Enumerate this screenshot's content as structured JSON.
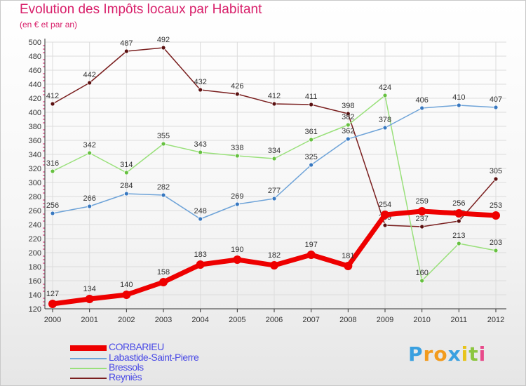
{
  "title": "Evolution des Impôts locaux par Habitant",
  "subtitle": "(en € et par an)",
  "logo": {
    "letters": [
      "P",
      "r",
      "o",
      "x",
      "i",
      "t",
      "i"
    ],
    "colors": [
      "#3aa0e0",
      "#f29b1d",
      "#f29b1d",
      "#3aa0e0",
      "#e8c41a",
      "#8cc63f",
      "#e84a8a"
    ]
  },
  "chart_data": {
    "type": "line",
    "x": [
      "2000",
      "2001",
      "2002",
      "2003",
      "2004",
      "2005",
      "2006",
      "2007",
      "2008",
      "2009",
      "2010",
      "2011",
      "2012"
    ],
    "ylim": [
      120,
      500
    ],
    "yticks": [
      "120",
      "140",
      "160",
      "180",
      "200",
      "220",
      "240",
      "260",
      "280",
      "300",
      "320",
      "340",
      "360",
      "380",
      "400",
      "420",
      "440",
      "460",
      "480",
      "500"
    ],
    "grid": true,
    "series": [
      {
        "name": "Reyniès",
        "color": "#7a1f1f",
        "point_color": "#5a1010",
        "values": [
          412,
          442,
          487,
          492,
          432,
          426,
          412,
          411,
          398,
          239,
          237,
          245,
          305
        ],
        "labels": [
          "412",
          "442",
          "487",
          "492",
          "432",
          "426",
          "412",
          "411",
          "398",
          "239",
          "237",
          "245",
          "305"
        ]
      },
      {
        "name": "Bressols",
        "color": "#99e07a",
        "point_color": "#66c040",
        "values": [
          316,
          342,
          314,
          355,
          343,
          338,
          334,
          361,
          382,
          424,
          160,
          213,
          203
        ],
        "labels": [
          "316",
          "342",
          "314",
          "355",
          "343",
          "338",
          "334",
          "361",
          "382",
          "424",
          "160",
          "213",
          "203"
        ]
      },
      {
        "name": "Labastide-Saint-Pierre",
        "color": "#6ea3d8",
        "point_color": "#3878c0",
        "values": [
          256,
          266,
          284,
          282,
          248,
          269,
          277,
          325,
          362,
          378,
          406,
          410,
          407
        ],
        "labels": [
          "256",
          "266",
          "284",
          "282",
          "248",
          "269",
          "277",
          "325",
          "362",
          "378",
          "406",
          "410",
          "407"
        ]
      },
      {
        "name": "CORBARIEU",
        "color": "#ee0000",
        "point_color": "#ee0000",
        "values": [
          127,
          134,
          140,
          158,
          183,
          190,
          182,
          197,
          181,
          254,
          259,
          256,
          253
        ],
        "labels": [
          "127",
          "134",
          "140",
          "158",
          "183",
          "190",
          "182",
          "197",
          "181",
          "254",
          "259",
          "256",
          "253"
        ]
      }
    ],
    "legend": [
      "CORBARIEU",
      "Labastide-Saint-Pierre",
      "Bressols",
      "Reyniès"
    ],
    "legend_position": "bottom-left"
  }
}
